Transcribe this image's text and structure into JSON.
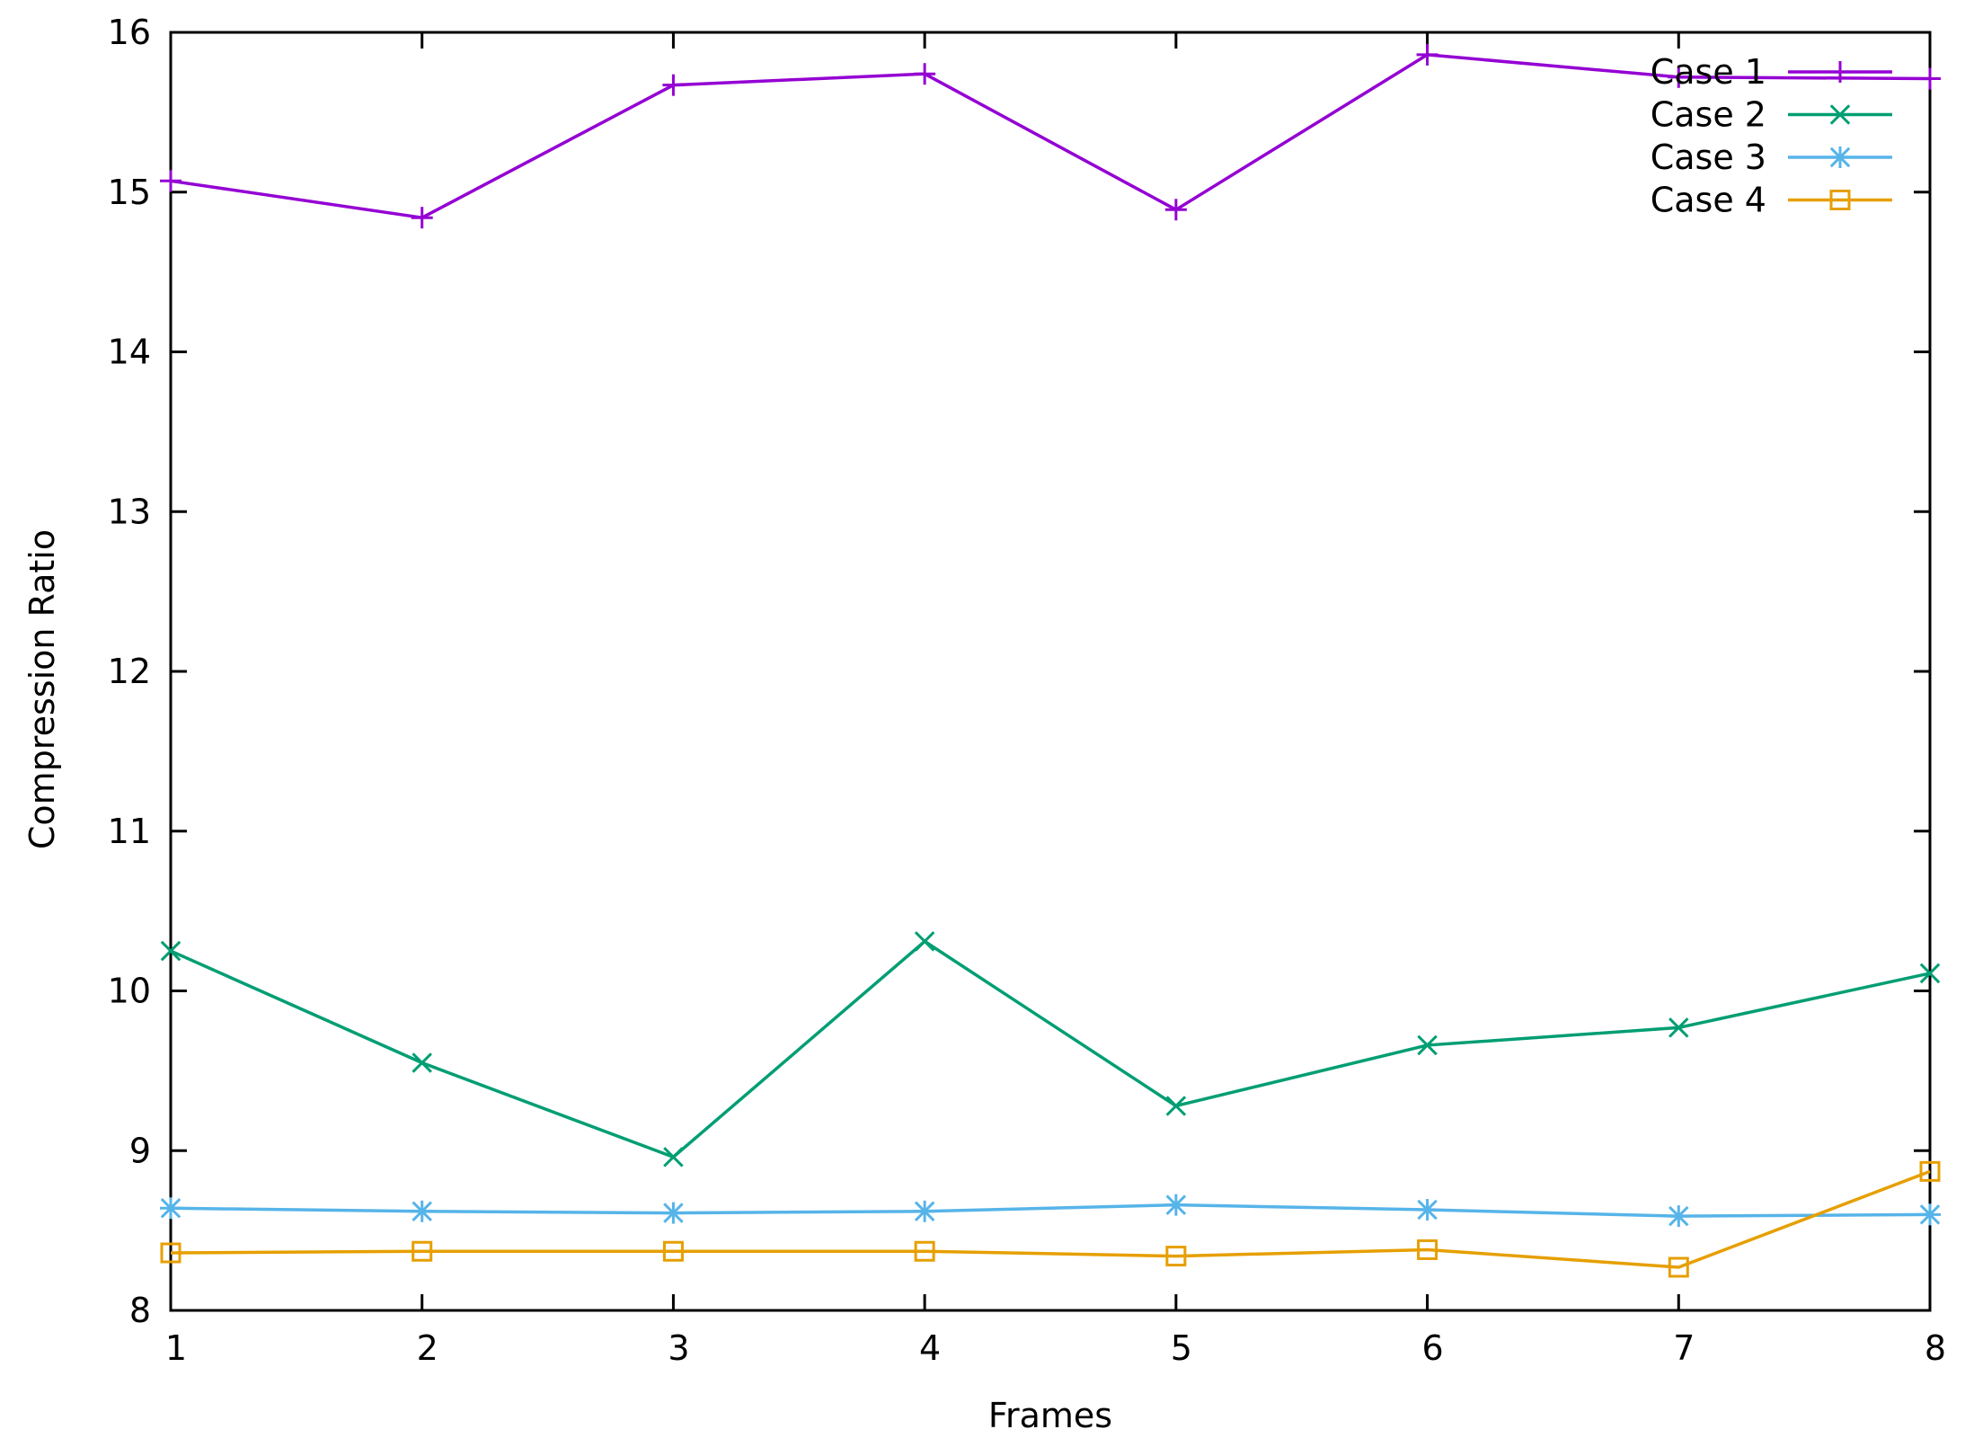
{
  "chart_data": {
    "type": "line",
    "title": "",
    "xlabel": "Frames",
    "ylabel": "Compression Ratio",
    "x": [
      1,
      2,
      3,
      4,
      5,
      6,
      7,
      8
    ],
    "xlim": [
      1,
      8
    ],
    "ylim": [
      8,
      16
    ],
    "xticks": [
      "1",
      "2",
      "3",
      "4",
      "5",
      "6",
      "7",
      "8"
    ],
    "yticks": [
      "8",
      "9",
      "10",
      "11",
      "12",
      "13",
      "14",
      "15",
      "16"
    ],
    "grid": false,
    "legend_position": "top-right",
    "series": [
      {
        "name": "Case 1",
        "color": "#9400d3",
        "marker": "plus",
        "values": [
          15.07,
          14.84,
          15.67,
          15.74,
          14.89,
          15.86,
          15.72,
          15.71
        ]
      },
      {
        "name": "Case 2",
        "color": "#009e73",
        "marker": "cross",
        "values": [
          10.25,
          9.55,
          8.96,
          10.31,
          9.28,
          9.66,
          9.77,
          10.11
        ]
      },
      {
        "name": "Case 3",
        "color": "#56b4e9",
        "marker": "asterisk",
        "values": [
          8.64,
          8.62,
          8.61,
          8.62,
          8.66,
          8.63,
          8.59,
          8.6
        ]
      },
      {
        "name": "Case 4",
        "color": "#e69f00",
        "marker": "square",
        "values": [
          8.36,
          8.37,
          8.37,
          8.37,
          8.34,
          8.38,
          8.27,
          8.87
        ]
      }
    ]
  }
}
